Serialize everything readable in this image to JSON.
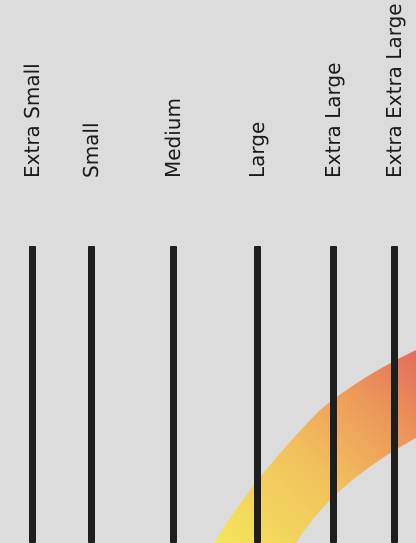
{
  "size_options": [
    {
      "label": "Extra Small"
    },
    {
      "label": "Small"
    },
    {
      "label": "Medium"
    },
    {
      "label": "Large"
    },
    {
      "label": "Extra Large"
    },
    {
      "label": "Extra Extra Large"
    }
  ],
  "colors": {
    "background": "#dcdcdc",
    "bar": "#1e1e1e",
    "text": "#1a1a1a",
    "swoosh_start": "#f3e25a",
    "swoosh_mid": "#f0b35a",
    "swoosh_end": "#e5705a"
  }
}
